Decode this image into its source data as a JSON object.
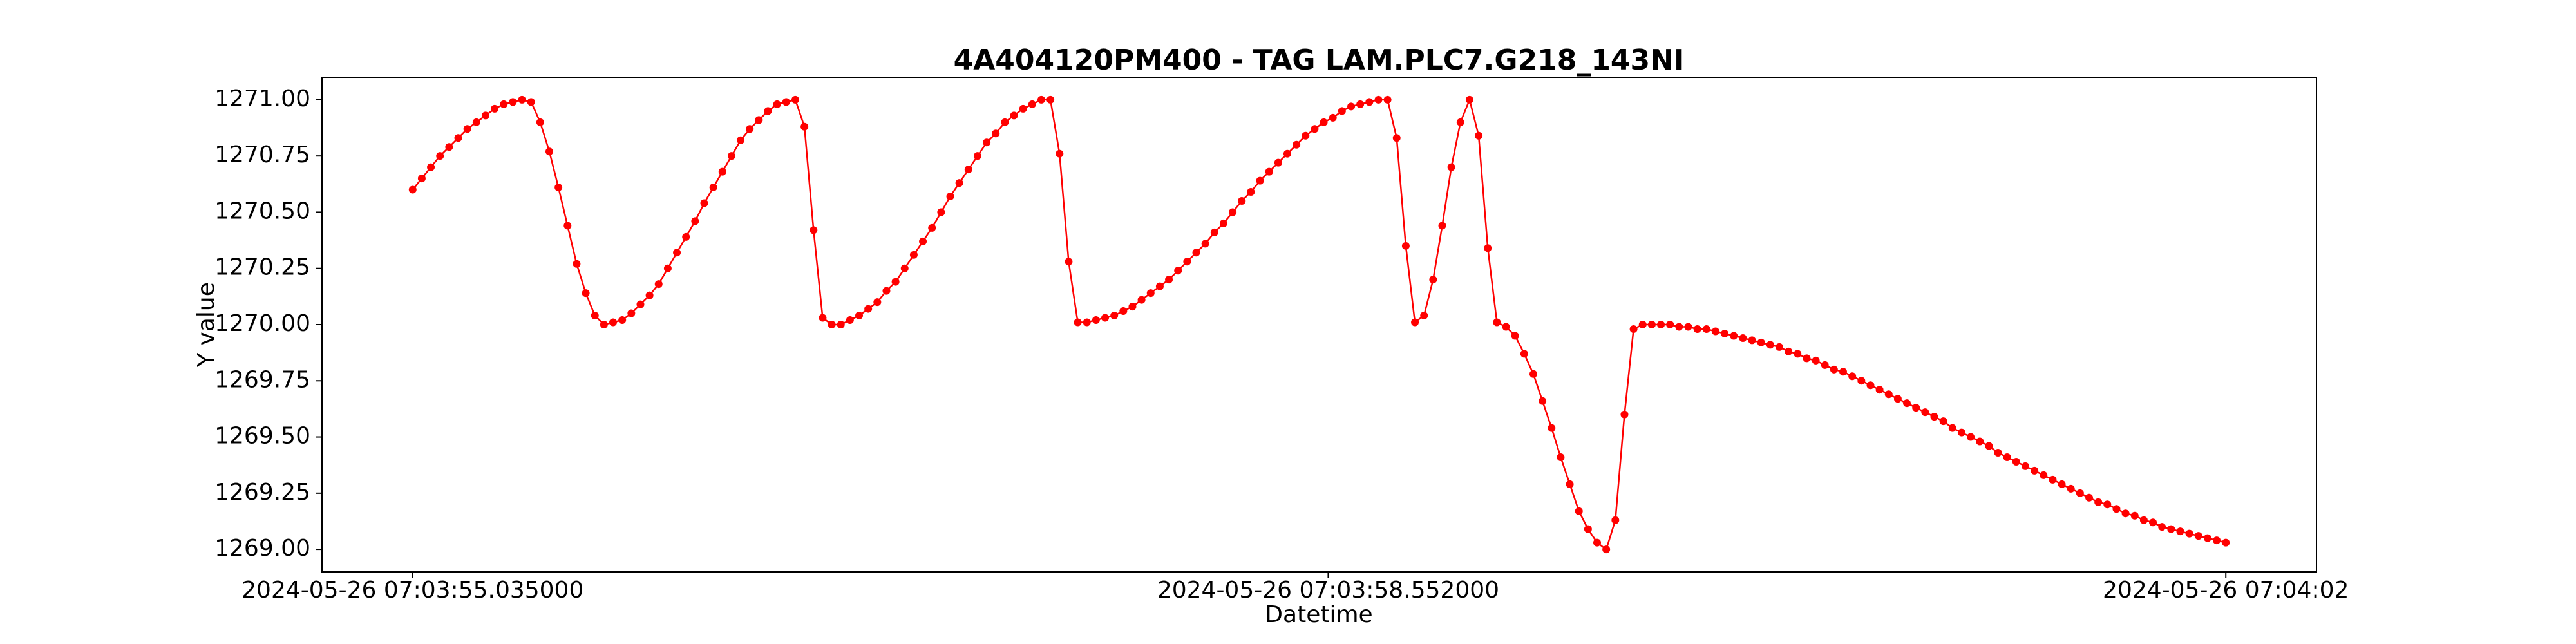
{
  "chart_data": {
    "type": "line",
    "title": "4A404120PM400 - TAG LAM.PLC7.G218_143NI",
    "x_label": "Datetime",
    "y_label": "Y value",
    "color": "#ff0000",
    "grid": false,
    "x": [
      "2024-05-26 07:03:55.035000",
      "2024-05-26 07:03:55.070000",
      "2024-05-26 07:03:55.105000",
      "2024-05-26 07:03:55.140000",
      "2024-05-26 07:03:55.175000",
      "2024-05-26 07:03:55.210000",
      "2024-05-26 07:03:55.245000",
      "2024-05-26 07:03:55.280000",
      "2024-05-26 07:03:55.315000",
      "2024-05-26 07:03:55.350000",
      "2024-05-26 07:03:55.385000",
      "2024-05-26 07:03:55.420000",
      "2024-05-26 07:03:55.455000",
      "2024-05-26 07:03:55.490000",
      "2024-05-26 07:03:55.525000",
      "2024-05-26 07:03:55.560000",
      "2024-05-26 07:03:55.595000",
      "2024-05-26 07:03:55.630000",
      "2024-05-26 07:03:55.665000",
      "2024-05-26 07:03:55.700000",
      "2024-05-26 07:03:55.735000",
      "2024-05-26 07:03:55.770000",
      "2024-05-26 07:03:55.805000",
      "2024-05-26 07:03:55.840000",
      "2024-05-26 07:03:55.875000",
      "2024-05-26 07:03:55.910000",
      "2024-05-26 07:03:55.945000",
      "2024-05-26 07:03:55.980000",
      "2024-05-26 07:03:56.015000",
      "2024-05-26 07:03:56.050000",
      "2024-05-26 07:03:56.085000",
      "2024-05-26 07:03:56.120000",
      "2024-05-26 07:03:56.155000",
      "2024-05-26 07:03:56.190000",
      "2024-05-26 07:03:56.225000",
      "2024-05-26 07:03:56.260000",
      "2024-05-26 07:03:56.295000",
      "2024-05-26 07:03:56.330000",
      "2024-05-26 07:03:56.365000",
      "2024-05-26 07:03:56.400000",
      "2024-05-26 07:03:56.435000",
      "2024-05-26 07:03:56.470000",
      "2024-05-26 07:03:56.505000",
      "2024-05-26 07:03:56.540000",
      "2024-05-26 07:03:56.575000",
      "2024-05-26 07:03:56.610000",
      "2024-05-26 07:03:56.645000",
      "2024-05-26 07:03:56.680000",
      "2024-05-26 07:03:56.715000",
      "2024-05-26 07:03:56.750000",
      "2024-05-26 07:03:56.785000",
      "2024-05-26 07:03:56.820000",
      "2024-05-26 07:03:56.855000",
      "2024-05-26 07:03:56.890000",
      "2024-05-26 07:03:56.925000",
      "2024-05-26 07:03:56.960000",
      "2024-05-26 07:03:56.995000",
      "2024-05-26 07:03:57.030000",
      "2024-05-26 07:03:57.065000",
      "2024-05-26 07:03:57.100000",
      "2024-05-26 07:03:57.135000",
      "2024-05-26 07:03:57.170000",
      "2024-05-26 07:03:57.205000",
      "2024-05-26 07:03:57.240000",
      "2024-05-26 07:03:57.275000",
      "2024-05-26 07:03:57.310000",
      "2024-05-26 07:03:57.345000",
      "2024-05-26 07:03:57.380000",
      "2024-05-26 07:03:57.415000",
      "2024-05-26 07:03:57.450000",
      "2024-05-26 07:03:57.485000",
      "2024-05-26 07:03:57.520000",
      "2024-05-26 07:03:57.555000",
      "2024-05-26 07:03:57.590000",
      "2024-05-26 07:03:57.625000",
      "2024-05-26 07:03:57.660000",
      "2024-05-26 07:03:57.695000",
      "2024-05-26 07:03:57.730000",
      "2024-05-26 07:03:57.765000",
      "2024-05-26 07:03:57.800000",
      "2024-05-26 07:03:57.835000",
      "2024-05-26 07:03:57.870000",
      "2024-05-26 07:03:57.905000",
      "2024-05-26 07:03:57.940000",
      "2024-05-26 07:03:57.975000",
      "2024-05-26 07:03:58.010000",
      "2024-05-26 07:03:58.045000",
      "2024-05-26 07:03:58.080000",
      "2024-05-26 07:03:58.115000",
      "2024-05-26 07:03:58.150000",
      "2024-05-26 07:03:58.185000",
      "2024-05-26 07:03:58.220000",
      "2024-05-26 07:03:58.255000",
      "2024-05-26 07:03:58.290000",
      "2024-05-26 07:03:58.325000",
      "2024-05-26 07:03:58.360000",
      "2024-05-26 07:03:58.395000",
      "2024-05-26 07:03:58.430000",
      "2024-05-26 07:03:58.465000",
      "2024-05-26 07:03:58.500000",
      "2024-05-26 07:03:58.535000",
      "2024-05-26 07:03:58.570000",
      "2024-05-26 07:03:58.605000",
      "2024-05-26 07:03:58.640000",
      "2024-05-26 07:03:58.675000",
      "2024-05-26 07:03:58.710000",
      "2024-05-26 07:03:58.745000",
      "2024-05-26 07:03:58.780000",
      "2024-05-26 07:03:58.815000",
      "2024-05-26 07:03:58.850000",
      "2024-05-26 07:03:58.885000",
      "2024-05-26 07:03:58.920000",
      "2024-05-26 07:03:58.955000",
      "2024-05-26 07:03:58.990000",
      "2024-05-26 07:03:59.025000",
      "2024-05-26 07:03:59.060000",
      "2024-05-26 07:03:59.095000",
      "2024-05-26 07:03:59.130000",
      "2024-05-26 07:03:59.165000",
      "2024-05-26 07:03:59.200000",
      "2024-05-26 07:03:59.235000",
      "2024-05-26 07:03:59.270000",
      "2024-05-26 07:03:59.305000",
      "2024-05-26 07:03:59.340000",
      "2024-05-26 07:03:59.375000",
      "2024-05-26 07:03:59.410000",
      "2024-05-26 07:03:59.445000",
      "2024-05-26 07:03:59.480000",
      "2024-05-26 07:03:59.515000",
      "2024-05-26 07:03:59.550000",
      "2024-05-26 07:03:59.585000",
      "2024-05-26 07:03:59.620000",
      "2024-05-26 07:03:59.655000",
      "2024-05-26 07:03:59.690000",
      "2024-05-26 07:03:59.725000",
      "2024-05-26 07:03:59.760000",
      "2024-05-26 07:03:59.795000",
      "2024-05-26 07:03:59.830000",
      "2024-05-26 07:03:59.865000",
      "2024-05-26 07:03:59.900000",
      "2024-05-26 07:03:59.935000",
      "2024-05-26 07:03:59.970000",
      "2024-05-26 07:04:00.005000",
      "2024-05-26 07:04:00.040000",
      "2024-05-26 07:04:00.075000",
      "2024-05-26 07:04:00.110000",
      "2024-05-26 07:04:00.145000",
      "2024-05-26 07:04:00.180000",
      "2024-05-26 07:04:00.215000",
      "2024-05-26 07:04:00.250000",
      "2024-05-26 07:04:00.285000",
      "2024-05-26 07:04:00.320000",
      "2024-05-26 07:04:00.355000",
      "2024-05-26 07:04:00.390000",
      "2024-05-26 07:04:00.425000",
      "2024-05-26 07:04:00.460000",
      "2024-05-26 07:04:00.495000",
      "2024-05-26 07:04:00.530000",
      "2024-05-26 07:04:00.565000",
      "2024-05-26 07:04:00.600000",
      "2024-05-26 07:04:00.635000",
      "2024-05-26 07:04:00.670000",
      "2024-05-26 07:04:00.705000",
      "2024-05-26 07:04:00.740000",
      "2024-05-26 07:04:00.775000",
      "2024-05-26 07:04:00.810000",
      "2024-05-26 07:04:00.845000",
      "2024-05-26 07:04:00.880000",
      "2024-05-26 07:04:00.915000",
      "2024-05-26 07:04:00.950000",
      "2024-05-26 07:04:00.985000",
      "2024-05-26 07:04:01.020000",
      "2024-05-26 07:04:01.055000",
      "2024-05-26 07:04:01.090000",
      "2024-05-26 07:04:01.125000",
      "2024-05-26 07:04:01.160000",
      "2024-05-26 07:04:01.195000",
      "2024-05-26 07:04:01.230000",
      "2024-05-26 07:04:01.265000",
      "2024-05-26 07:04:01.300000",
      "2024-05-26 07:04:01.335000",
      "2024-05-26 07:04:01.370000",
      "2024-05-26 07:04:01.405000",
      "2024-05-26 07:04:01.440000",
      "2024-05-26 07:04:01.475000",
      "2024-05-26 07:04:01.510000",
      "2024-05-26 07:04:01.545000",
      "2024-05-26 07:04:01.580000",
      "2024-05-26 07:04:01.615000",
      "2024-05-26 07:04:01.650000",
      "2024-05-26 07:04:01.685000",
      "2024-05-26 07:04:01.720000",
      "2024-05-26 07:04:01.755000",
      "2024-05-26 07:04:01.790000",
      "2024-05-26 07:04:01.825000",
      "2024-05-26 07:04:01.860000",
      "2024-05-26 07:04:01.895000",
      "2024-05-26 07:04:01.930000",
      "2024-05-26 07:04:01.965000",
      "2024-05-26 07:04:02.000000"
    ],
    "values": [
      1270.6,
      1270.65,
      1270.7,
      1270.75,
      1270.79,
      1270.83,
      1270.87,
      1270.9,
      1270.93,
      1270.96,
      1270.98,
      1270.99,
      1271.0,
      1270.99,
      1270.9,
      1270.77,
      1270.61,
      1270.44,
      1270.27,
      1270.14,
      1270.04,
      1270.0,
      1270.01,
      1270.02,
      1270.05,
      1270.09,
      1270.13,
      1270.18,
      1270.25,
      1270.32,
      1270.39,
      1270.46,
      1270.54,
      1270.61,
      1270.68,
      1270.75,
      1270.82,
      1270.87,
      1270.91,
      1270.95,
      1270.98,
      1270.99,
      1271.0,
      1270.88,
      1270.42,
      1270.03,
      1270.0,
      1270.0,
      1270.02,
      1270.04,
      1270.07,
      1270.1,
      1270.15,
      1270.19,
      1270.25,
      1270.31,
      1270.37,
      1270.43,
      1270.5,
      1270.57,
      1270.63,
      1270.69,
      1270.75,
      1270.81,
      1270.85,
      1270.9,
      1270.93,
      1270.96,
      1270.98,
      1271.0,
      1271.0,
      1270.76,
      1270.28,
      1270.01,
      1270.01,
      1270.02,
      1270.03,
      1270.04,
      1270.06,
      1270.08,
      1270.11,
      1270.14,
      1270.17,
      1270.2,
      1270.24,
      1270.28,
      1270.32,
      1270.36,
      1270.41,
      1270.45,
      1270.5,
      1270.55,
      1270.59,
      1270.64,
      1270.68,
      1270.72,
      1270.76,
      1270.8,
      1270.84,
      1270.87,
      1270.9,
      1270.92,
      1270.95,
      1270.97,
      1270.98,
      1270.99,
      1271.0,
      1271.0,
      1270.83,
      1270.35,
      1270.01,
      1270.04,
      1270.2,
      1270.44,
      1270.7,
      1270.9,
      1271.0,
      1270.84,
      1270.34,
      1270.01,
      1269.99,
      1269.95,
      1269.87,
      1269.78,
      1269.66,
      1269.54,
      1269.41,
      1269.29,
      1269.17,
      1269.09,
      1269.03,
      1269.0,
      1269.13,
      1269.6,
      1269.98,
      1270.0,
      1270.0,
      1270.0,
      1270.0,
      1269.99,
      1269.99,
      1269.98,
      1269.98,
      1269.97,
      1269.96,
      1269.95,
      1269.94,
      1269.93,
      1269.92,
      1269.91,
      1269.9,
      1269.88,
      1269.87,
      1269.85,
      1269.84,
      1269.82,
      1269.8,
      1269.79,
      1269.77,
      1269.75,
      1269.73,
      1269.71,
      1269.69,
      1269.67,
      1269.65,
      1269.63,
      1269.61,
      1269.59,
      1269.57,
      1269.54,
      1269.52,
      1269.5,
      1269.48,
      1269.46,
      1269.43,
      1269.41,
      1269.39,
      1269.37,
      1269.35,
      1269.33,
      1269.31,
      1269.29,
      1269.27,
      1269.25,
      1269.23,
      1269.21,
      1269.2,
      1269.18,
      1269.16,
      1269.15,
      1269.13,
      1269.12,
      1269.1,
      1269.09,
      1269.08,
      1269.07,
      1269.06,
      1269.05,
      1269.04,
      1269.03
    ],
    "xlim": [
      "2024-05-26 07:03:54.686750",
      "2024-05-26 07:04:02.348250"
    ],
    "xticks": [
      "2024-05-26 07:03:55.035000",
      "2024-05-26 07:03:58.552000",
      "2024-05-26 07:04:02"
    ],
    "ylim": [
      1268.9,
      1271.1
    ],
    "yticks": [
      {
        "value": 1269,
        "label": "1269.00"
      },
      {
        "value": 1269.25,
        "label": "1269.25"
      },
      {
        "value": 1269.5,
        "label": "1269.50"
      },
      {
        "value": 1269.75,
        "label": "1269.75"
      },
      {
        "value": 1270,
        "label": "1270.00"
      },
      {
        "value": 1270.25,
        "label": "1270.25"
      },
      {
        "value": 1270.5,
        "label": "1270.50"
      },
      {
        "value": 1270.75,
        "label": "1270.75"
      },
      {
        "value": 1271,
        "label": "1271.00"
      }
    ]
  }
}
